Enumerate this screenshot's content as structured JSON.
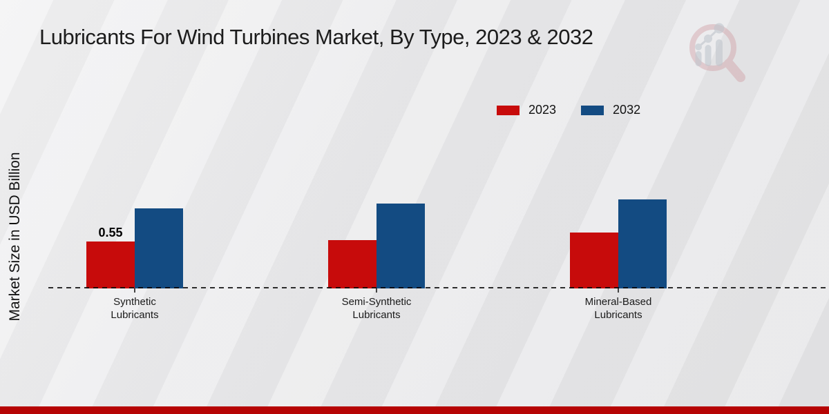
{
  "page": {
    "title": "Lubricants For Wind Turbines Market, By Type, 2023 & 2032",
    "y_axis_label": "Market Size in USD Billion"
  },
  "legend": {
    "items": [
      {
        "label": "2023",
        "color": "#c70b0b"
      },
      {
        "label": "2032",
        "color": "#134b82"
      }
    ]
  },
  "watermark": {
    "icon": "magnifier-bar-chart-logo",
    "ring_color": "#d2a3a8",
    "bars_color": "#c2c7ce"
  },
  "footer": {
    "bar_color": "#b60404"
  },
  "chart_data": {
    "type": "bar",
    "title": "Lubricants For Wind Turbines Market, By Type, 2023 & 2032",
    "xlabel": "",
    "ylabel": "Market Size in USD Billion",
    "units": "USD Billion",
    "categories": [
      "Synthetic Lubricants",
      "Semi-Synthetic Lubricants",
      "Mineral-Based Lubricants"
    ],
    "categories_multiline": [
      "Synthetic\nLubricants",
      "Semi-Synthetic\nLubricants",
      "Mineral-Based\nLubricants"
    ],
    "series": [
      {
        "name": "2023",
        "color": "#c70b0b",
        "values": [
          0.55,
          0.56,
          0.65
        ],
        "data_labels": [
          "0.55",
          null,
          null
        ]
      },
      {
        "name": "2032",
        "color": "#134b82",
        "values": [
          0.93,
          0.99,
          1.04
        ],
        "data_labels": [
          null,
          null,
          null
        ]
      }
    ],
    "ylim": [
      0,
      1.2
    ],
    "grid": false,
    "y_axis_ticks_visible": false,
    "baseline_style": "dashed",
    "legend_position": "top-right"
  }
}
